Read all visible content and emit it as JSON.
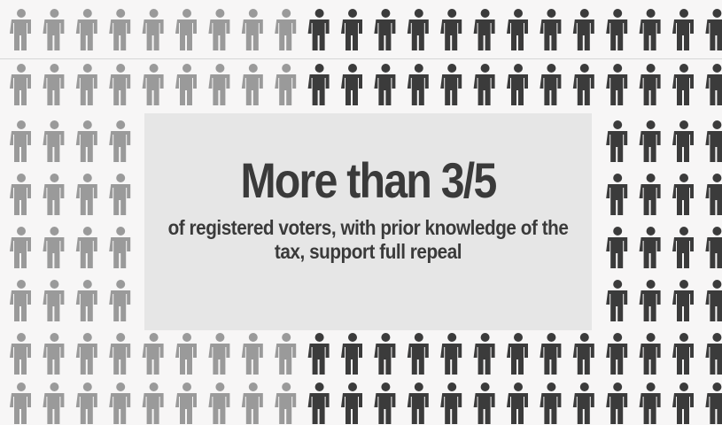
{
  "infographic": {
    "headline": "More than 3/5",
    "subline": "of registered voters, with prior knowledge of the tax, support full repeal",
    "colors": {
      "background": "#f7f6f6",
      "figure_light": "#9a9a9a",
      "figure_dark": "#3b3b3b",
      "callout_bg": "#e6e6e6",
      "text": "#3a3a3a"
    },
    "figure_icon": "person-icon"
  }
}
